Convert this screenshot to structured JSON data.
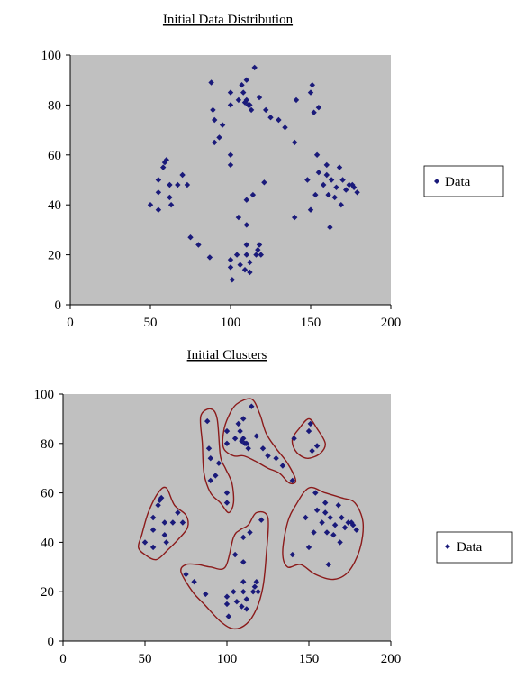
{
  "chart_data": [
    {
      "type": "scatter",
      "title": "Initial Data Distribution",
      "xlabel": "",
      "ylabel": "",
      "xlim": [
        0,
        200
      ],
      "ylim": [
        0,
        100
      ],
      "xticks": [
        0,
        50,
        100,
        150,
        200
      ],
      "yticks": [
        0,
        20,
        40,
        60,
        80,
        100
      ],
      "grid": false,
      "legend_position": "right",
      "marker_color": "#1a1a7a",
      "background_color": "#c0c0c0",
      "series": [
        {
          "name": "Data",
          "points": [
            [
              50,
              40
            ],
            [
              55,
              38
            ],
            [
              55,
              45
            ],
            [
              55,
              50
            ],
            [
              58,
              55
            ],
            [
              59,
              57
            ],
            [
              60,
              58
            ],
            [
              62,
              48
            ],
            [
              62,
              43
            ],
            [
              63,
              40
            ],
            [
              67,
              48
            ],
            [
              70,
              52
            ],
            [
              73,
              48
            ],
            [
              88,
              89
            ],
            [
              89,
              78
            ],
            [
              90,
              74
            ],
            [
              90,
              65
            ],
            [
              93,
              67
            ],
            [
              95,
              72
            ],
            [
              100,
              85
            ],
            [
              100,
              80
            ],
            [
              100,
              60
            ],
            [
              100,
              56
            ],
            [
              105,
              82
            ],
            [
              107,
              88
            ],
            [
              108,
              85
            ],
            [
              109,
              81
            ],
            [
              110,
              90
            ],
            [
              110,
              82
            ],
            [
              111,
              80
            ],
            [
              112,
              80
            ],
            [
              113,
              78
            ],
            [
              115,
              95
            ],
            [
              118,
              83
            ],
            [
              122,
              78
            ],
            [
              125,
              75
            ],
            [
              130,
              74
            ],
            [
              134,
              71
            ],
            [
              140,
              65
            ],
            [
              141,
              82
            ],
            [
              150,
              85
            ],
            [
              151,
              88
            ],
            [
              152,
              77
            ],
            [
              155,
              79
            ],
            [
              75,
              27
            ],
            [
              80,
              24
            ],
            [
              87,
              19
            ],
            [
              100,
              18
            ],
            [
              100,
              15
            ],
            [
              101,
              10
            ],
            [
              104,
              20
            ],
            [
              105,
              35
            ],
            [
              106,
              16
            ],
            [
              109,
              14
            ],
            [
              110,
              42
            ],
            [
              110,
              32
            ],
            [
              110,
              20
            ],
            [
              110,
              24
            ],
            [
              112,
              17
            ],
            [
              112,
              13
            ],
            [
              114,
              44
            ],
            [
              116,
              20
            ],
            [
              117,
              22
            ],
            [
              118,
              24
            ],
            [
              119,
              20
            ],
            [
              121,
              49
            ],
            [
              140,
              35
            ],
            [
              148,
              50
            ],
            [
              150,
              38
            ],
            [
              153,
              44
            ],
            [
              154,
              60
            ],
            [
              155,
              53
            ],
            [
              158,
              48
            ],
            [
              160,
              56
            ],
            [
              160,
              52
            ],
            [
              161,
              44
            ],
            [
              162,
              31
            ],
            [
              163,
              50
            ],
            [
              165,
              43
            ],
            [
              166,
              47
            ],
            [
              168,
              55
            ],
            [
              169,
              40
            ],
            [
              170,
              50
            ],
            [
              172,
              46
            ],
            [
              174,
              48
            ],
            [
              176,
              48
            ],
            [
              177,
              47
            ],
            [
              179,
              45
            ]
          ]
        }
      ]
    },
    {
      "type": "scatter",
      "title": "Initial Clusters",
      "xlabel": "",
      "ylabel": "",
      "xlim": [
        0,
        200
      ],
      "ylim": [
        0,
        100
      ],
      "xticks": [
        0,
        50,
        100,
        150,
        200
      ],
      "yticks": [
        0,
        20,
        40,
        60,
        80,
        100
      ],
      "grid": false,
      "legend_position": "right",
      "marker_color": "#1a1a7a",
      "cluster_outline_color": "#8b1a1a",
      "background_color": "#c0c0c0",
      "series": [
        {
          "name": "Data",
          "points": [
            [
              50,
              40
            ],
            [
              55,
              38
            ],
            [
              55,
              45
            ],
            [
              55,
              50
            ],
            [
              58,
              55
            ],
            [
              59,
              57
            ],
            [
              60,
              58
            ],
            [
              62,
              48
            ],
            [
              62,
              43
            ],
            [
              63,
              40
            ],
            [
              67,
              48
            ],
            [
              70,
              52
            ],
            [
              73,
              48
            ],
            [
              88,
              89
            ],
            [
              89,
              78
            ],
            [
              90,
              74
            ],
            [
              90,
              65
            ],
            [
              93,
              67
            ],
            [
              95,
              72
            ],
            [
              100,
              85
            ],
            [
              100,
              80
            ],
            [
              100,
              60
            ],
            [
              100,
              56
            ],
            [
              105,
              82
            ],
            [
              107,
              88
            ],
            [
              108,
              85
            ],
            [
              109,
              81
            ],
            [
              110,
              90
            ],
            [
              110,
              82
            ],
            [
              111,
              80
            ],
            [
              112,
              80
            ],
            [
              113,
              78
            ],
            [
              115,
              95
            ],
            [
              118,
              83
            ],
            [
              122,
              78
            ],
            [
              125,
              75
            ],
            [
              130,
              74
            ],
            [
              134,
              71
            ],
            [
              140,
              65
            ],
            [
              141,
              82
            ],
            [
              150,
              85
            ],
            [
              151,
              88
            ],
            [
              152,
              77
            ],
            [
              155,
              79
            ],
            [
              75,
              27
            ],
            [
              80,
              24
            ],
            [
              87,
              19
            ],
            [
              100,
              18
            ],
            [
              100,
              15
            ],
            [
              101,
              10
            ],
            [
              104,
              20
            ],
            [
              105,
              35
            ],
            [
              106,
              16
            ],
            [
              109,
              14
            ],
            [
              110,
              42
            ],
            [
              110,
              32
            ],
            [
              110,
              20
            ],
            [
              110,
              24
            ],
            [
              112,
              17
            ],
            [
              112,
              13
            ],
            [
              114,
              44
            ],
            [
              116,
              20
            ],
            [
              117,
              22
            ],
            [
              118,
              24
            ],
            [
              119,
              20
            ],
            [
              121,
              49
            ],
            [
              140,
              35
            ],
            [
              148,
              50
            ],
            [
              150,
              38
            ],
            [
              153,
              44
            ],
            [
              154,
              60
            ],
            [
              155,
              53
            ],
            [
              158,
              48
            ],
            [
              160,
              56
            ],
            [
              160,
              52
            ],
            [
              161,
              44
            ],
            [
              162,
              31
            ],
            [
              163,
              50
            ],
            [
              165,
              43
            ],
            [
              166,
              47
            ],
            [
              168,
              55
            ],
            [
              169,
              40
            ],
            [
              170,
              50
            ],
            [
              172,
              46
            ],
            [
              174,
              48
            ],
            [
              176,
              48
            ],
            [
              177,
              47
            ],
            [
              179,
              45
            ]
          ]
        }
      ],
      "clusters": [
        {
          "outline": [
            [
              48,
              43
            ],
            [
              52,
              52
            ],
            [
              58,
              60
            ],
            [
              63,
              62
            ],
            [
              68,
              55
            ],
            [
              75,
              51
            ],
            [
              76,
              46
            ],
            [
              70,
              41
            ],
            [
              64,
              37
            ],
            [
              57,
              33
            ],
            [
              50,
              35
            ],
            [
              46,
              38
            ]
          ]
        },
        {
          "outline": [
            [
              84,
              91
            ],
            [
              90,
              94
            ],
            [
              94,
              90
            ],
            [
              96,
              75
            ],
            [
              99,
              70
            ],
            [
              103,
              64
            ],
            [
              104,
              56
            ],
            [
              101,
              52
            ],
            [
              96,
              56
            ],
            [
              90,
              60
            ],
            [
              86,
              68
            ],
            [
              85,
              80
            ]
          ]
        },
        {
          "outline": [
            [
              98,
              85
            ],
            [
              101,
              91
            ],
            [
              106,
              96
            ],
            [
              115,
              98
            ],
            [
              120,
              92
            ],
            [
              124,
              84
            ],
            [
              130,
              78
            ],
            [
              137,
              72
            ],
            [
              142,
              65
            ],
            [
              138,
              64
            ],
            [
              132,
              68
            ],
            [
              125,
              70
            ],
            [
              117,
              73
            ],
            [
              110,
              75
            ],
            [
              104,
              75
            ],
            [
              98,
              78
            ]
          ]
        },
        {
          "outline": [
            [
              140,
              82
            ],
            [
              144,
              86
            ],
            [
              150,
              90
            ],
            [
              155,
              86
            ],
            [
              160,
              80
            ],
            [
              157,
              76
            ],
            [
              150,
              74
            ],
            [
              145,
              75
            ],
            [
              141,
              78
            ]
          ]
        },
        {
          "outline": [
            [
              72,
              28
            ],
            [
              79,
              20
            ],
            [
              86,
              15
            ],
            [
              96,
              8
            ],
            [
              104,
              5
            ],
            [
              112,
              7
            ],
            [
              118,
              13
            ],
            [
              122,
              22
            ],
            [
              124,
              35
            ],
            [
              125,
              50
            ],
            [
              118,
              52
            ],
            [
              113,
              47
            ],
            [
              108,
              45
            ],
            [
              104,
              42
            ],
            [
              99,
              30
            ],
            [
              90,
              30
            ],
            [
              82,
              31
            ],
            [
              75,
              31
            ]
          ]
        },
        {
          "outline": [
            [
              134,
              36
            ],
            [
              137,
              48
            ],
            [
              142,
              55
            ],
            [
              150,
              62
            ],
            [
              160,
              60
            ],
            [
              170,
              58
            ],
            [
              178,
              56
            ],
            [
              183,
              48
            ],
            [
              181,
              37
            ],
            [
              174,
              28
            ],
            [
              165,
              25
            ],
            [
              154,
              27
            ],
            [
              145,
              31
            ],
            [
              137,
              30
            ]
          ]
        }
      ]
    }
  ]
}
